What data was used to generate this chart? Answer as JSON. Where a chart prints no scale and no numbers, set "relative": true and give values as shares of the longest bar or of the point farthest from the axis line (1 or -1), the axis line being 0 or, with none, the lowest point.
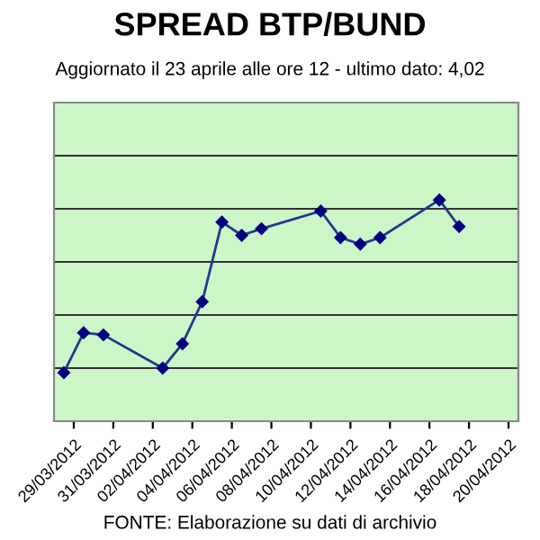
{
  "chart_data": {
    "type": "line",
    "title": "SPREAD BTP/BUND",
    "subtitle": "Aggiornato il 23 aprile alle ore 12 - ultimo dato: 4,02",
    "relative": true,
    "grid": "y",
    "marker": "diamond",
    "line_style": "solid",
    "x": [
      "2012-03-28T12:00",
      "2012-03-29T12:00",
      "2012-03-30T12:00",
      "2012-04-02T12:00",
      "2012-04-03T12:00",
      "2012-04-04T12:00",
      "2012-04-05T12:00",
      "2012-04-06T12:00",
      "2012-04-07T12:00",
      "2012-04-10T12:00",
      "2012-04-11T12:00",
      "2012-04-12T12:00",
      "2012-04-13T12:00",
      "2012-04-16T12:00",
      "2012-04-17T12:00"
    ],
    "series": [
      {
        "color": "#1f3a8a",
        "values": [
          0.22,
          0.4,
          0.39,
          0.24,
          0.35,
          0.54,
          0.9,
          0.84,
          0.87,
          0.95,
          0.83,
          0.8,
          0.83,
          1.0,
          0.88
        ]
      }
    ],
    "xlim": [
      "2012-03-28T00:00",
      "2012-04-20T12:00"
    ],
    "xticks": [
      {
        "value": "2012-03-29",
        "label": "29/03/2012"
      },
      {
        "value": "2012-03-31",
        "label": "31/03/2012"
      },
      {
        "value": "2012-04-02",
        "label": "02/04/2012"
      },
      {
        "value": "2012-04-04",
        "label": "04/04/2012"
      },
      {
        "value": "2012-04-06",
        "label": "06/04/2012"
      },
      {
        "value": "2012-04-08",
        "label": "08/04/2012"
      },
      {
        "value": "2012-04-10",
        "label": "10/04/2012"
      },
      {
        "value": "2012-04-12",
        "label": "12/04/2012"
      },
      {
        "value": "2012-04-14",
        "label": "14/04/2012"
      },
      {
        "value": "2012-04-16",
        "label": "16/04/2012"
      },
      {
        "value": "2012-04-18",
        "label": "18/04/2012"
      },
      {
        "value": "2012-04-20",
        "label": "20/04/2012"
      }
    ],
    "annotations": [
      "FONTE: Elaborazione su dati di archivio"
    ]
  }
}
